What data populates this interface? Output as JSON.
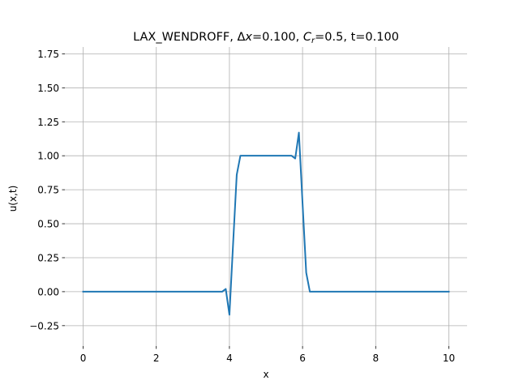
{
  "chart_data": {
    "type": "line",
    "title": "LAX_WENDROFF, Δx=0.100, Cr=0.5, t=0.100",
    "title_parts": {
      "scheme": "LAX_WENDROFF, ",
      "delta_symbol": "Δ",
      "dx_var": "x",
      "dx_value": "=0.100, ",
      "courant_var": "C",
      "courant_sub": "r",
      "courant_value": "=0.5, t=0.100"
    },
    "xlabel": "x",
    "ylabel": "u(x,t)",
    "xlim": [
      -0.5,
      10.5
    ],
    "ylim": [
      -0.4,
      1.8
    ],
    "xticks": [
      0,
      2,
      4,
      6,
      8,
      10
    ],
    "xtick_labels": [
      "0",
      "2",
      "4",
      "6",
      "8",
      "10"
    ],
    "yticks": [
      -0.25,
      0.0,
      0.25,
      0.5,
      0.75,
      1.0,
      1.25,
      1.5,
      1.75
    ],
    "ytick_labels": [
      "−0.25",
      "0.00",
      "0.25",
      "0.50",
      "0.75",
      "1.00",
      "1.25",
      "1.50",
      "1.75"
    ],
    "grid": true,
    "series": [
      {
        "color": "#1f77b4",
        "x": [
          0.0,
          0.1,
          0.2,
          0.3,
          0.4,
          0.5,
          0.6,
          0.7,
          0.8,
          0.9,
          1.0,
          1.1,
          1.2,
          1.3,
          1.4,
          1.5,
          1.6,
          1.7,
          1.8,
          1.9,
          2.0,
          2.1,
          2.2,
          2.3,
          2.4,
          2.5,
          2.6,
          2.7,
          2.8,
          2.9,
          3.0,
          3.1,
          3.2,
          3.3,
          3.4,
          3.5,
          3.6,
          3.7,
          3.8,
          3.9,
          4.0,
          4.1,
          4.2,
          4.3,
          4.4,
          4.5,
          4.6,
          4.7,
          4.8,
          4.9,
          5.0,
          5.1,
          5.2,
          5.3,
          5.4,
          5.5,
          5.6,
          5.7,
          5.8,
          5.9,
          6.0,
          6.1,
          6.2,
          6.3,
          6.4,
          6.5,
          6.6,
          6.7,
          6.8,
          6.9,
          7.0,
          7.1,
          7.2,
          7.3,
          7.4,
          7.5,
          7.6,
          7.7,
          7.8,
          7.9,
          8.0,
          8.1,
          8.2,
          8.3,
          8.4,
          8.5,
          8.6,
          8.7,
          8.8,
          8.9,
          9.0,
          9.1,
          9.2,
          9.3,
          9.4,
          9.5,
          9.6,
          9.7,
          9.8,
          9.9,
          10.0
        ],
        "y": [
          0.0,
          0.0,
          0.0,
          0.0,
          0.0,
          0.0,
          0.0,
          0.0,
          0.0,
          0.0,
          0.0,
          0.0,
          0.0,
          0.0,
          0.0,
          0.0,
          0.0,
          0.0,
          0.0,
          0.0,
          0.0,
          0.0,
          0.0,
          0.0,
          0.0,
          0.0,
          0.0,
          0.0,
          0.0,
          0.0,
          0.0,
          0.0,
          0.0,
          0.0,
          0.0,
          0.0,
          0.0,
          0.0,
          0.0,
          0.02,
          -0.17,
          0.35,
          0.86,
          1.0,
          1.0,
          1.0,
          1.0,
          1.0,
          1.0,
          1.0,
          1.0,
          1.0,
          1.0,
          1.0,
          1.0,
          1.0,
          1.0,
          1.0,
          0.98,
          1.17,
          0.65,
          0.14,
          0.0,
          0.0,
          0.0,
          0.0,
          0.0,
          0.0,
          0.0,
          0.0,
          0.0,
          0.0,
          0.0,
          0.0,
          0.0,
          0.0,
          0.0,
          0.0,
          0.0,
          0.0,
          0.0,
          0.0,
          0.0,
          0.0,
          0.0,
          0.0,
          0.0,
          0.0,
          0.0,
          0.0,
          0.0,
          0.0,
          0.0,
          0.0,
          0.0,
          0.0,
          0.0,
          0.0,
          0.0,
          0.0,
          0.0
        ]
      }
    ]
  }
}
